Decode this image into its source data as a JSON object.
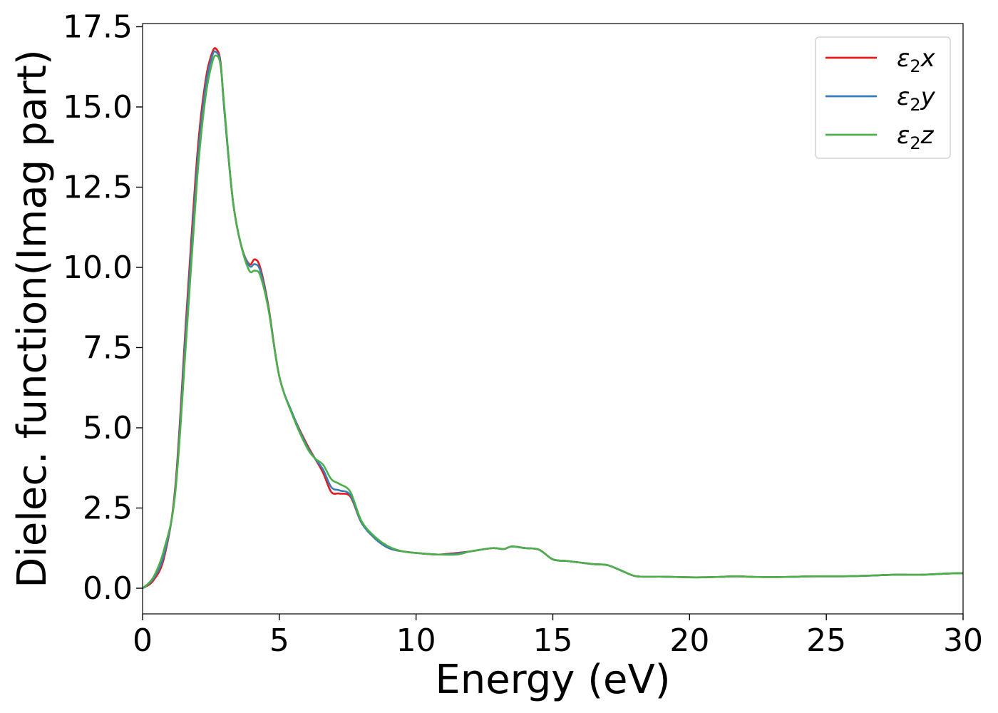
{
  "chart_data": {
    "type": "line",
    "xlabel": "Energy (eV)",
    "ylabel": "Dielec. function(Imag part)",
    "xlim": [
      0,
      30
    ],
    "ylim": [
      -0.8,
      17.6
    ],
    "xticks": [
      0,
      5,
      10,
      15,
      20,
      25,
      30
    ],
    "yticks": [
      0.0,
      2.5,
      5.0,
      7.5,
      10.0,
      12.5,
      15.0,
      17.5
    ],
    "xtick_labels": [
      "0",
      "5",
      "10",
      "15",
      "20",
      "25",
      "30"
    ],
    "ytick_labels": [
      "0.0",
      "2.5",
      "5.0",
      "7.5",
      "10.0",
      "12.5",
      "15.0",
      "17.5"
    ],
    "grid": false,
    "legend": "top-right",
    "series": [
      {
        "name": "ε₂x",
        "label_base": "ε",
        "label_sub": "2",
        "label_var": "x",
        "color": "#e41a1c",
        "x": [
          0,
          0.4,
          0.8,
          1.2,
          1.6,
          2.0,
          2.3,
          2.55,
          2.7,
          2.85,
          3.0,
          3.3,
          3.6,
          3.9,
          4.1,
          4.3,
          4.6,
          5.0,
          5.5,
          6.0,
          6.3,
          6.6,
          6.9,
          7.2,
          7.6,
          8.0,
          8.5,
          9.0,
          9.5,
          10.0,
          10.8,
          11.5,
          12.0,
          12.8,
          13.2,
          13.5,
          14.0,
          14.5,
          15.0,
          15.5,
          16.0,
          16.5,
          17.0,
          17.5,
          18.0,
          18.5,
          19.0,
          20.0,
          20.5,
          21.0,
          21.7,
          22.5,
          23.5,
          24.5,
          25.5,
          26.5,
          27.5,
          28.5,
          29.5,
          30.0
        ],
        "y": [
          0.0,
          0.25,
          1.0,
          3.2,
          8.5,
          13.5,
          15.8,
          16.7,
          16.8,
          16.4,
          14.8,
          12.1,
          10.7,
          10.1,
          10.25,
          10.0,
          8.8,
          6.6,
          5.4,
          4.5,
          4.05,
          3.6,
          3.0,
          2.95,
          2.85,
          2.05,
          1.55,
          1.25,
          1.15,
          1.1,
          1.05,
          1.1,
          1.15,
          1.25,
          1.22,
          1.3,
          1.25,
          1.2,
          0.9,
          0.85,
          0.8,
          0.75,
          0.72,
          0.55,
          0.38,
          0.36,
          0.36,
          0.34,
          0.34,
          0.35,
          0.37,
          0.35,
          0.35,
          0.37,
          0.37,
          0.39,
          0.42,
          0.42,
          0.46,
          0.47
        ]
      },
      {
        "name": "ε₂y",
        "label_base": "ε",
        "label_sub": "2",
        "label_var": "y",
        "color": "#377eb8",
        "x": [
          0,
          0.4,
          0.8,
          1.2,
          1.6,
          2.0,
          2.3,
          2.55,
          2.7,
          2.85,
          3.0,
          3.3,
          3.6,
          3.9,
          4.1,
          4.3,
          4.6,
          5.0,
          5.5,
          6.0,
          6.3,
          6.6,
          6.9,
          7.2,
          7.6,
          8.0,
          8.5,
          9.0,
          9.5,
          10.0,
          10.8,
          11.5,
          12.0,
          12.8,
          13.2,
          13.5,
          14.0,
          14.5,
          15.0,
          15.5,
          16.0,
          16.5,
          17.0,
          17.5,
          18.0,
          18.5,
          19.0,
          20.0,
          20.5,
          21.0,
          21.7,
          22.5,
          23.5,
          24.5,
          25.5,
          26.5,
          27.5,
          28.5,
          29.5,
          30.0
        ],
        "y": [
          0.0,
          0.3,
          1.1,
          3.1,
          8.2,
          13.2,
          15.6,
          16.6,
          16.7,
          16.35,
          14.8,
          12.1,
          10.7,
          10.05,
          10.1,
          9.9,
          8.75,
          6.6,
          5.4,
          4.45,
          4.05,
          3.7,
          3.15,
          3.05,
          2.9,
          2.05,
          1.55,
          1.25,
          1.15,
          1.1,
          1.05,
          1.08,
          1.15,
          1.25,
          1.22,
          1.3,
          1.25,
          1.2,
          0.9,
          0.85,
          0.8,
          0.75,
          0.72,
          0.55,
          0.38,
          0.36,
          0.36,
          0.34,
          0.34,
          0.35,
          0.37,
          0.35,
          0.35,
          0.37,
          0.37,
          0.39,
          0.42,
          0.42,
          0.46,
          0.47
        ]
      },
      {
        "name": "ε₂z",
        "label_base": "ε",
        "label_sub": "2",
        "label_var": "z",
        "color": "#4daf4a",
        "x": [
          0,
          0.4,
          0.8,
          1.2,
          1.6,
          2.0,
          2.3,
          2.55,
          2.7,
          2.85,
          3.0,
          3.3,
          3.6,
          3.9,
          4.1,
          4.3,
          4.6,
          5.0,
          5.5,
          6.0,
          6.3,
          6.6,
          6.9,
          7.2,
          7.6,
          8.0,
          8.5,
          9.0,
          9.5,
          10.0,
          10.8,
          11.5,
          12.0,
          12.8,
          13.2,
          13.5,
          14.0,
          14.5,
          15.0,
          15.5,
          16.0,
          16.5,
          17.0,
          17.5,
          18.0,
          18.5,
          19.0,
          20.0,
          20.5,
          21.0,
          21.7,
          22.5,
          23.5,
          24.5,
          25.5,
          26.5,
          27.5,
          28.5,
          29.5,
          30.0
        ],
        "y": [
          0.0,
          0.35,
          1.25,
          3.0,
          7.8,
          12.8,
          15.3,
          16.4,
          16.6,
          16.3,
          14.9,
          12.1,
          10.7,
          9.9,
          9.9,
          9.75,
          8.7,
          6.6,
          5.35,
          4.4,
          4.05,
          3.85,
          3.4,
          3.25,
          3.0,
          2.1,
          1.6,
          1.3,
          1.15,
          1.1,
          1.05,
          1.05,
          1.15,
          1.25,
          1.22,
          1.3,
          1.25,
          1.2,
          0.9,
          0.85,
          0.8,
          0.75,
          0.72,
          0.55,
          0.38,
          0.36,
          0.36,
          0.34,
          0.34,
          0.35,
          0.37,
          0.35,
          0.35,
          0.37,
          0.37,
          0.39,
          0.42,
          0.42,
          0.46,
          0.47
        ]
      }
    ]
  }
}
